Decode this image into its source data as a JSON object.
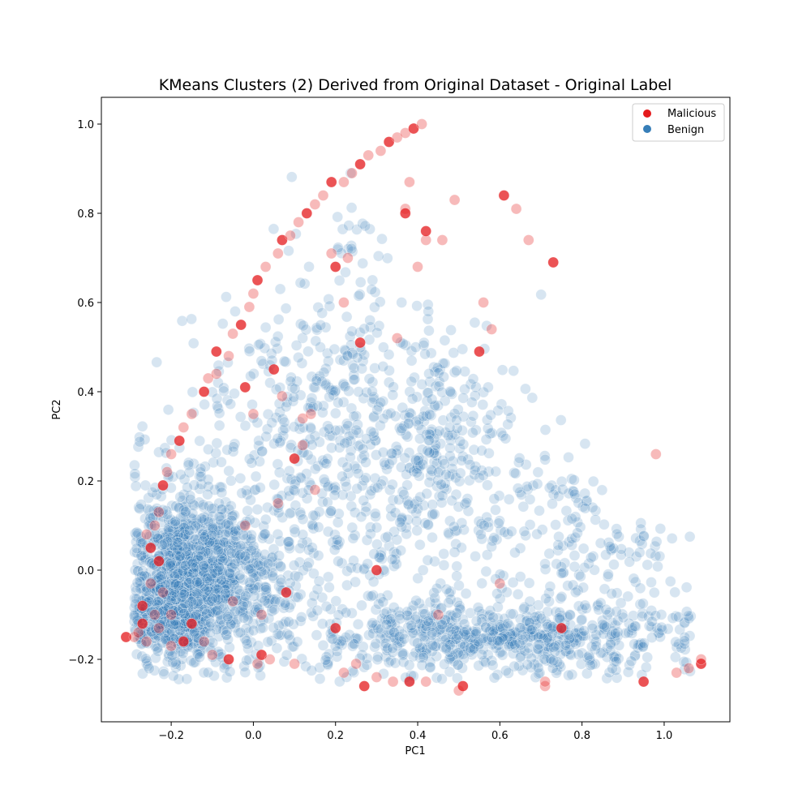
{
  "chart_data": {
    "type": "scatter",
    "title": "KMeans Clusters (2) Derived from Original Dataset - Original Label",
    "xlabel": "PC1",
    "ylabel": "PC2",
    "xlim": [
      -0.37,
      1.16
    ],
    "ylim": [
      -0.34,
      1.06
    ],
    "xticks": [
      -0.2,
      0.0,
      0.2,
      0.4,
      0.6,
      0.8,
      1.0
    ],
    "xtick_labels": [
      "−0.2",
      "0.0",
      "0.2",
      "0.4",
      "0.6",
      "0.8",
      "1.0"
    ],
    "yticks": [
      -0.2,
      0.0,
      0.2,
      0.4,
      0.6,
      0.8,
      1.0
    ],
    "ytick_labels": [
      "−0.2",
      "0.0",
      "0.2",
      "0.4",
      "0.6",
      "0.8",
      "1.0"
    ],
    "grid": false,
    "legend": {
      "placement": "top-right"
    },
    "series": [
      {
        "name": "Malicious",
        "color": "#e41a1c",
        "points": [
          [
            -0.31,
            -0.15
          ],
          [
            -0.29,
            -0.15
          ],
          [
            -0.28,
            -0.14
          ],
          [
            -0.27,
            -0.12
          ],
          [
            -0.26,
            -0.16
          ],
          [
            -0.24,
            -0.1
          ],
          [
            -0.25,
            0.05
          ],
          [
            -0.24,
            0.1
          ],
          [
            -0.23,
            0.13
          ],
          [
            -0.22,
            0.19
          ],
          [
            -0.21,
            0.22
          ],
          [
            -0.2,
            0.26
          ],
          [
            -0.18,
            0.29
          ],
          [
            -0.17,
            0.32
          ],
          [
            -0.15,
            0.35
          ],
          [
            -0.12,
            0.4
          ],
          [
            -0.11,
            0.43
          ],
          [
            -0.09,
            0.44
          ],
          [
            -0.09,
            0.49
          ],
          [
            -0.06,
            0.48
          ],
          [
            -0.05,
            0.53
          ],
          [
            -0.03,
            0.55
          ],
          [
            -0.01,
            0.59
          ],
          [
            0.0,
            0.62
          ],
          [
            0.01,
            0.65
          ],
          [
            0.03,
            0.68
          ],
          [
            0.06,
            0.71
          ],
          [
            0.07,
            0.74
          ],
          [
            0.09,
            0.75
          ],
          [
            0.11,
            0.78
          ],
          [
            0.13,
            0.8
          ],
          [
            0.15,
            0.82
          ],
          [
            0.17,
            0.84
          ],
          [
            0.19,
            0.87
          ],
          [
            0.22,
            0.87
          ],
          [
            0.24,
            0.89
          ],
          [
            0.26,
            0.91
          ],
          [
            0.28,
            0.93
          ],
          [
            0.31,
            0.94
          ],
          [
            0.33,
            0.96
          ],
          [
            0.35,
            0.97
          ],
          [
            0.37,
            0.98
          ],
          [
            0.39,
            0.99
          ],
          [
            0.41,
            1.0
          ],
          [
            0.37,
            0.81
          ],
          [
            0.37,
            0.8
          ],
          [
            0.38,
            0.87
          ],
          [
            0.42,
            0.74
          ],
          [
            0.42,
            0.76
          ],
          [
            0.46,
            0.74
          ],
          [
            0.49,
            0.83
          ],
          [
            0.55,
            0.49
          ],
          [
            0.56,
            0.6
          ],
          [
            0.58,
            0.54
          ],
          [
            0.61,
            0.84
          ],
          [
            0.64,
            0.81
          ],
          [
            0.67,
            0.74
          ],
          [
            0.73,
            0.69
          ],
          [
            0.98,
            0.26
          ],
          [
            0.19,
            0.71
          ],
          [
            0.2,
            0.68
          ],
          [
            0.22,
            0.6
          ],
          [
            0.23,
            0.7
          ],
          [
            0.26,
            0.51
          ],
          [
            0.35,
            0.52
          ],
          [
            0.4,
            0.68
          ],
          [
            0.1,
            0.25
          ],
          [
            0.12,
            0.34
          ],
          [
            0.14,
            0.35
          ],
          [
            0.05,
            0.45
          ],
          [
            0.07,
            0.39
          ],
          [
            0.0,
            0.35
          ],
          [
            -0.02,
            0.41
          ],
          [
            0.12,
            0.28
          ],
          [
            0.15,
            0.18
          ],
          [
            0.2,
            -0.13
          ],
          [
            0.22,
            -0.23
          ],
          [
            0.25,
            -0.21
          ],
          [
            0.27,
            -0.26
          ],
          [
            0.3,
            -0.24
          ],
          [
            0.34,
            -0.25
          ],
          [
            0.38,
            -0.25
          ],
          [
            0.42,
            -0.25
          ],
          [
            0.5,
            -0.27
          ],
          [
            0.51,
            -0.26
          ],
          [
            0.71,
            -0.26
          ],
          [
            0.71,
            -0.25
          ],
          [
            0.95,
            -0.25
          ],
          [
            1.03,
            -0.23
          ],
          [
            1.06,
            -0.22
          ],
          [
            1.09,
            -0.21
          ],
          [
            1.09,
            -0.2
          ],
          [
            0.01,
            -0.21
          ],
          [
            0.02,
            -0.19
          ],
          [
            0.04,
            -0.2
          ],
          [
            0.1,
            -0.21
          ],
          [
            -0.06,
            -0.2
          ],
          [
            -0.1,
            -0.19
          ],
          [
            -0.12,
            -0.16
          ],
          [
            -0.17,
            -0.16
          ],
          [
            -0.2,
            -0.17
          ],
          [
            -0.23,
            -0.13
          ],
          [
            -0.27,
            -0.08
          ],
          [
            -0.25,
            -0.03
          ],
          [
            -0.26,
            0.08
          ],
          [
            -0.23,
            0.02
          ],
          [
            -0.22,
            -0.05
          ],
          [
            -0.2,
            -0.1
          ],
          [
            -0.15,
            -0.12
          ],
          [
            -0.05,
            -0.07
          ],
          [
            0.02,
            -0.1
          ],
          [
            0.08,
            -0.05
          ],
          [
            -0.02,
            0.1
          ],
          [
            0.06,
            0.15
          ],
          [
            0.3,
            0.0
          ],
          [
            0.45,
            -0.1
          ],
          [
            0.6,
            -0.03
          ],
          [
            0.75,
            -0.13
          ]
        ]
      },
      {
        "name": "Benign",
        "color": "#377eb8",
        "clusters": [
          {
            "cx": -0.16,
            "cy": 0.0,
            "sx": 0.07,
            "sy": 0.1,
            "n": 900
          },
          {
            "cx": -0.2,
            "cy": -0.1,
            "sx": 0.05,
            "sy": 0.04,
            "n": 250
          },
          {
            "cx": -0.05,
            "cy": -0.03,
            "sx": 0.1,
            "sy": 0.08,
            "n": 350
          },
          {
            "cx": 0.6,
            "cy": -0.15,
            "sx": 0.25,
            "sy": 0.04,
            "n": 650
          },
          {
            "cx": 0.3,
            "cy": 0.15,
            "sx": 0.22,
            "sy": 0.18,
            "n": 500
          },
          {
            "cx": 0.15,
            "cy": 0.4,
            "sx": 0.15,
            "sy": 0.12,
            "n": 220
          },
          {
            "cx": 0.75,
            "cy": 0.05,
            "sx": 0.15,
            "sy": 0.1,
            "n": 160
          },
          {
            "cx": 0.25,
            "cy": 0.65,
            "sx": 0.08,
            "sy": 0.1,
            "n": 45
          },
          {
            "cx": 0.45,
            "cy": 0.3,
            "sx": 0.1,
            "sy": 0.1,
            "n": 150
          }
        ]
      }
    ]
  }
}
